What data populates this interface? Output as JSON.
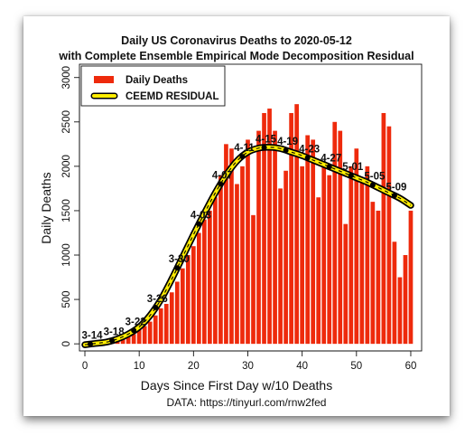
{
  "chart_data": {
    "type": "bar",
    "title": "Daily US Coronavirus Deaths to 2020-05-12",
    "subtitle": "with Complete Ensemble Empirical Mode Decomposition Residual",
    "xlabel": "Days Since First Day w/10 Deaths",
    "ylabel": "Daily Deaths",
    "source_note": "DATA: https://tinyurl.com/rnw2fed",
    "xlim": [
      -1,
      62
    ],
    "ylim": [
      -80,
      3150
    ],
    "x_ticks": [
      0,
      10,
      20,
      30,
      40,
      50,
      60
    ],
    "y_ticks": [
      0,
      500,
      1000,
      1500,
      2000,
      2500,
      3000
    ],
    "grid": false,
    "legend": {
      "position": "top-left",
      "entries": [
        "Daily Deaths",
        "CEEMD RESIDUAL"
      ]
    },
    "colors": {
      "bars": "#ee2a0c",
      "residual_fill": "#ffee00",
      "residual_outline": "#000000",
      "markers": "#000000"
    },
    "series": [
      {
        "name": "Daily Deaths",
        "type": "bar",
        "x": [
          1,
          2,
          3,
          4,
          5,
          6,
          7,
          8,
          9,
          10,
          11,
          12,
          13,
          14,
          15,
          16,
          17,
          18,
          19,
          20,
          21,
          22,
          23,
          24,
          25,
          26,
          27,
          28,
          29,
          30,
          31,
          32,
          33,
          34,
          35,
          36,
          37,
          38,
          39,
          40,
          41,
          42,
          43,
          44,
          45,
          46,
          47,
          48,
          49,
          50,
          51,
          52,
          53,
          54,
          55,
          56,
          57,
          58,
          59,
          60
        ],
        "values": [
          10,
          13,
          22,
          25,
          35,
          55,
          70,
          90,
          110,
          165,
          200,
          250,
          320,
          400,
          450,
          580,
          700,
          850,
          1000,
          1100,
          1250,
          1400,
          1500,
          1650,
          1900,
          2250,
          2200,
          1800,
          2000,
          2300,
          1450,
          2400,
          2600,
          2650,
          2400,
          1750,
          1950,
          2600,
          2700,
          2000,
          2350,
          2300,
          1650,
          2000,
          1900,
          2500,
          2400,
          1350,
          2000,
          2200,
          1850,
          2000,
          1600,
          1500,
          2600,
          2450,
          1150,
          750,
          1000,
          1500
        ]
      },
      {
        "name": "CEEMD RESIDUAL",
        "type": "line",
        "x": [
          0,
          2,
          4,
          6,
          8,
          10,
          12,
          14,
          16,
          18,
          20,
          22,
          24,
          26,
          28,
          30,
          32,
          34,
          36,
          38,
          40,
          42,
          44,
          46,
          48,
          50,
          52,
          54,
          56,
          58,
          60
        ],
        "values": [
          -10,
          5,
          20,
          55,
          110,
          190,
          320,
          500,
          730,
          980,
          1230,
          1470,
          1700,
          1900,
          2060,
          2160,
          2205,
          2215,
          2200,
          2160,
          2120,
          2070,
          2020,
          1970,
          1920,
          1870,
          1820,
          1760,
          1700,
          1640,
          1560
        ]
      }
    ],
    "markers": {
      "x": [
        1,
        5,
        9,
        13,
        17,
        21,
        25,
        29,
        33,
        37,
        41,
        45,
        49,
        53,
        57
      ],
      "labels": [
        "3-14",
        "3-18",
        "3-22",
        "3-26",
        "3-30",
        "4-03",
        "4-07",
        "4-11",
        "4-15",
        "4-19",
        "4-23",
        "4-27",
        "5-01",
        "5-05",
        "5-09"
      ]
    }
  }
}
